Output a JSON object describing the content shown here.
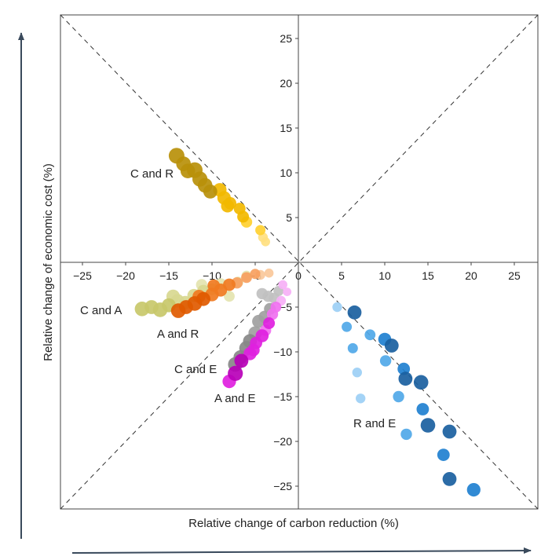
{
  "chart_data": {
    "type": "scatter",
    "xlabel": "Relative change of carbon reduction (%)",
    "ylabel": "Relative change of economic cost (%)",
    "xlim": [
      -27,
      27
    ],
    "ylim": [
      -27,
      27.5
    ],
    "x_ticks": [
      "−25",
      "−20",
      "−15",
      "−10",
      "−5",
      "0",
      "5",
      "10",
      "15",
      "20",
      "25"
    ],
    "y_ticks": [
      "−25",
      "−20",
      "−15",
      "−10",
      "−5",
      "0",
      "5",
      "10",
      "15",
      "20",
      "25"
    ],
    "grid": false,
    "diagonal_reference_lines": true,
    "series": [
      {
        "name": "C and R",
        "colors": [
          "#b8900a",
          "#f2b800",
          "#ffd030",
          "#ffe080"
        ],
        "points": [
          {
            "x": -14.1,
            "y": 11.9,
            "size": 1.0
          },
          {
            "x": -13.3,
            "y": 11.0,
            "size": 0.9
          },
          {
            "x": -12.8,
            "y": 10.2,
            "size": 0.9
          },
          {
            "x": -12.0,
            "y": 10.3,
            "size": 1.0
          },
          {
            "x": -11.4,
            "y": 9.3,
            "size": 0.95
          },
          {
            "x": -10.8,
            "y": 8.6,
            "size": 0.9
          },
          {
            "x": -10.2,
            "y": 7.9,
            "size": 0.85
          },
          {
            "x": -9.1,
            "y": 8.1,
            "size": 0.8
          },
          {
            "x": -8.6,
            "y": 7.2,
            "size": 0.8
          },
          {
            "x": -8.2,
            "y": 6.3,
            "size": 0.75
          },
          {
            "x": -7.9,
            "y": 6.6,
            "size": 0.7
          },
          {
            "x": -6.8,
            "y": 6.0,
            "size": 0.65
          },
          {
            "x": -6.4,
            "y": 5.1,
            "size": 0.65
          },
          {
            "x": -6.0,
            "y": 4.5,
            "size": 0.6
          },
          {
            "x": -4.4,
            "y": 3.6,
            "size": 0.5
          },
          {
            "x": -4.1,
            "y": 2.8,
            "size": 0.45
          },
          {
            "x": -3.8,
            "y": 2.3,
            "size": 0.4
          }
        ]
      },
      {
        "name": "C and A",
        "colors": [
          "#c8c86a",
          "#d8d890",
          "#e4e4b0",
          "#eeeed0"
        ],
        "points": [
          {
            "x": -18.1,
            "y": -5.2,
            "size": 0.9
          },
          {
            "x": -17.0,
            "y": -5.0,
            "size": 0.85
          },
          {
            "x": -16.0,
            "y": -5.3,
            "size": 0.9
          },
          {
            "x": -15.0,
            "y": -4.8,
            "size": 0.85
          },
          {
            "x": -14.0,
            "y": -4.3,
            "size": 0.8
          },
          {
            "x": -13.1,
            "y": -4.5,
            "size": 0.8
          },
          {
            "x": -12.1,
            "y": -3.7,
            "size": 0.75
          },
          {
            "x": -11.0,
            "y": -3.2,
            "size": 0.7
          },
          {
            "x": -14.5,
            "y": -3.8,
            "size": 0.8
          },
          {
            "x": -10.0,
            "y": -3.0,
            "size": 0.65
          },
          {
            "x": -9.0,
            "y": -2.4,
            "size": 0.6
          },
          {
            "x": -7.0,
            "y": -2.2,
            "size": 0.55
          },
          {
            "x": -11.2,
            "y": -2.5,
            "size": 0.6
          },
          {
            "x": -6.0,
            "y": -1.5,
            "size": 0.5
          },
          {
            "x": -8.0,
            "y": -3.8,
            "size": 0.55
          }
        ]
      },
      {
        "name": "A and R",
        "colors": [
          "#e05a00",
          "#f07a20",
          "#f7a060",
          "#fac89a"
        ],
        "points": [
          {
            "x": -13.9,
            "y": -5.4,
            "size": 0.9
          },
          {
            "x": -13.0,
            "y": -5.0,
            "size": 0.85
          },
          {
            "x": -12.0,
            "y": -4.6,
            "size": 0.9
          },
          {
            "x": -11.0,
            "y": -4.1,
            "size": 0.85
          },
          {
            "x": -10.0,
            "y": -3.6,
            "size": 0.8
          },
          {
            "x": -9.0,
            "y": -3.1,
            "size": 0.75
          },
          {
            "x": -8.0,
            "y": -2.5,
            "size": 0.7
          },
          {
            "x": -7.1,
            "y": -2.3,
            "size": 0.6
          },
          {
            "x": -6.0,
            "y": -1.7,
            "size": 0.55
          },
          {
            "x": -5.0,
            "y": -1.3,
            "size": 0.5
          },
          {
            "x": -4.4,
            "y": -1.4,
            "size": 0.45
          },
          {
            "x": -3.4,
            "y": -1.2,
            "size": 0.4
          },
          {
            "x": -9.8,
            "y": -2.6,
            "size": 0.7
          },
          {
            "x": -11.5,
            "y": -3.8,
            "size": 0.75
          }
        ]
      },
      {
        "name": "C and E",
        "colors": [
          "#888888",
          "#a0a0a0",
          "#c0c0c0",
          "#dcdcdc"
        ],
        "points": [
          {
            "x": -7.3,
            "y": -11.4,
            "size": 0.9
          },
          {
            "x": -6.7,
            "y": -10.6,
            "size": 0.85
          },
          {
            "x": -6.0,
            "y": -9.6,
            "size": 0.9
          },
          {
            "x": -5.6,
            "y": -8.8,
            "size": 0.85
          },
          {
            "x": -5.0,
            "y": -7.9,
            "size": 0.8
          },
          {
            "x": -4.6,
            "y": -6.6,
            "size": 0.75
          },
          {
            "x": -3.9,
            "y": -6.1,
            "size": 0.7
          },
          {
            "x": -3.3,
            "y": -5.2,
            "size": 0.65
          },
          {
            "x": -3.5,
            "y": -3.8,
            "size": 0.6
          },
          {
            "x": -2.8,
            "y": -4.0,
            "size": 0.55
          },
          {
            "x": -2.3,
            "y": -3.2,
            "size": 0.5
          },
          {
            "x": -4.2,
            "y": -3.5,
            "size": 0.6
          }
        ]
      },
      {
        "name": "A and E",
        "colors": [
          "#b800b8",
          "#e020e0",
          "#f070f0",
          "#f6b0f6"
        ],
        "points": [
          {
            "x": -8.0,
            "y": -13.3,
            "size": 0.8
          },
          {
            "x": -7.3,
            "y": -12.4,
            "size": 0.95
          },
          {
            "x": -6.6,
            "y": -11.0,
            "size": 0.85
          },
          {
            "x": -5.6,
            "y": -10.2,
            "size": 0.75
          },
          {
            "x": -4.9,
            "y": -9.0,
            "size": 0.7
          },
          {
            "x": -4.2,
            "y": -8.2,
            "size": 0.75
          },
          {
            "x": -3.8,
            "y": -7.6,
            "size": 0.6
          },
          {
            "x": -3.4,
            "y": -6.8,
            "size": 0.65
          },
          {
            "x": -3.0,
            "y": -5.8,
            "size": 0.6
          },
          {
            "x": -2.6,
            "y": -5.0,
            "size": 0.55
          },
          {
            "x": -2.0,
            "y": -4.3,
            "size": 0.45
          },
          {
            "x": -1.8,
            "y": -2.5,
            "size": 0.4
          },
          {
            "x": -1.3,
            "y": -3.3,
            "size": 0.35
          },
          {
            "x": -5.2,
            "y": -9.8,
            "size": 0.7
          }
        ]
      },
      {
        "name": "R and E",
        "colors": [
          "#1a5fa0",
          "#2080d0",
          "#50a8e8",
          "#9ccff5"
        ],
        "points": [
          {
            "x": 4.5,
            "y": -5.0,
            "size": 0.45
          },
          {
            "x": 6.5,
            "y": -5.6,
            "size": 0.85
          },
          {
            "x": 5.6,
            "y": -7.2,
            "size": 0.5
          },
          {
            "x": 8.3,
            "y": -8.1,
            "size": 0.55
          },
          {
            "x": 10.0,
            "y": -8.6,
            "size": 0.75
          },
          {
            "x": 10.8,
            "y": -9.3,
            "size": 0.85
          },
          {
            "x": 6.3,
            "y": -9.6,
            "size": 0.5
          },
          {
            "x": 10.1,
            "y": -11.0,
            "size": 0.6
          },
          {
            "x": 6.8,
            "y": -12.3,
            "size": 0.45
          },
          {
            "x": 12.2,
            "y": -11.9,
            "size": 0.7
          },
          {
            "x": 12.4,
            "y": -13.0,
            "size": 0.85
          },
          {
            "x": 14.2,
            "y": -13.4,
            "size": 0.9
          },
          {
            "x": 11.6,
            "y": -15.0,
            "size": 0.6
          },
          {
            "x": 7.2,
            "y": -15.2,
            "size": 0.45
          },
          {
            "x": 14.4,
            "y": -16.4,
            "size": 0.7
          },
          {
            "x": 15.0,
            "y": -18.2,
            "size": 0.9
          },
          {
            "x": 12.5,
            "y": -19.2,
            "size": 0.6
          },
          {
            "x": 17.5,
            "y": -18.9,
            "size": 0.85
          },
          {
            "x": 16.8,
            "y": -21.5,
            "size": 0.7
          },
          {
            "x": 17.5,
            "y": -24.2,
            "size": 0.85
          },
          {
            "x": 20.3,
            "y": -25.4,
            "size": 0.8
          }
        ]
      }
    ],
    "group_labels": [
      {
        "text": "C and R",
        "series": "C and R"
      },
      {
        "text": "C and A",
        "series": "C and A"
      },
      {
        "text": "A and R",
        "series": "A and R"
      },
      {
        "text": "C and E",
        "series": "C and E"
      },
      {
        "text": "A and E",
        "series": "A and E"
      },
      {
        "text": "R and E",
        "series": "R and E"
      }
    ]
  }
}
